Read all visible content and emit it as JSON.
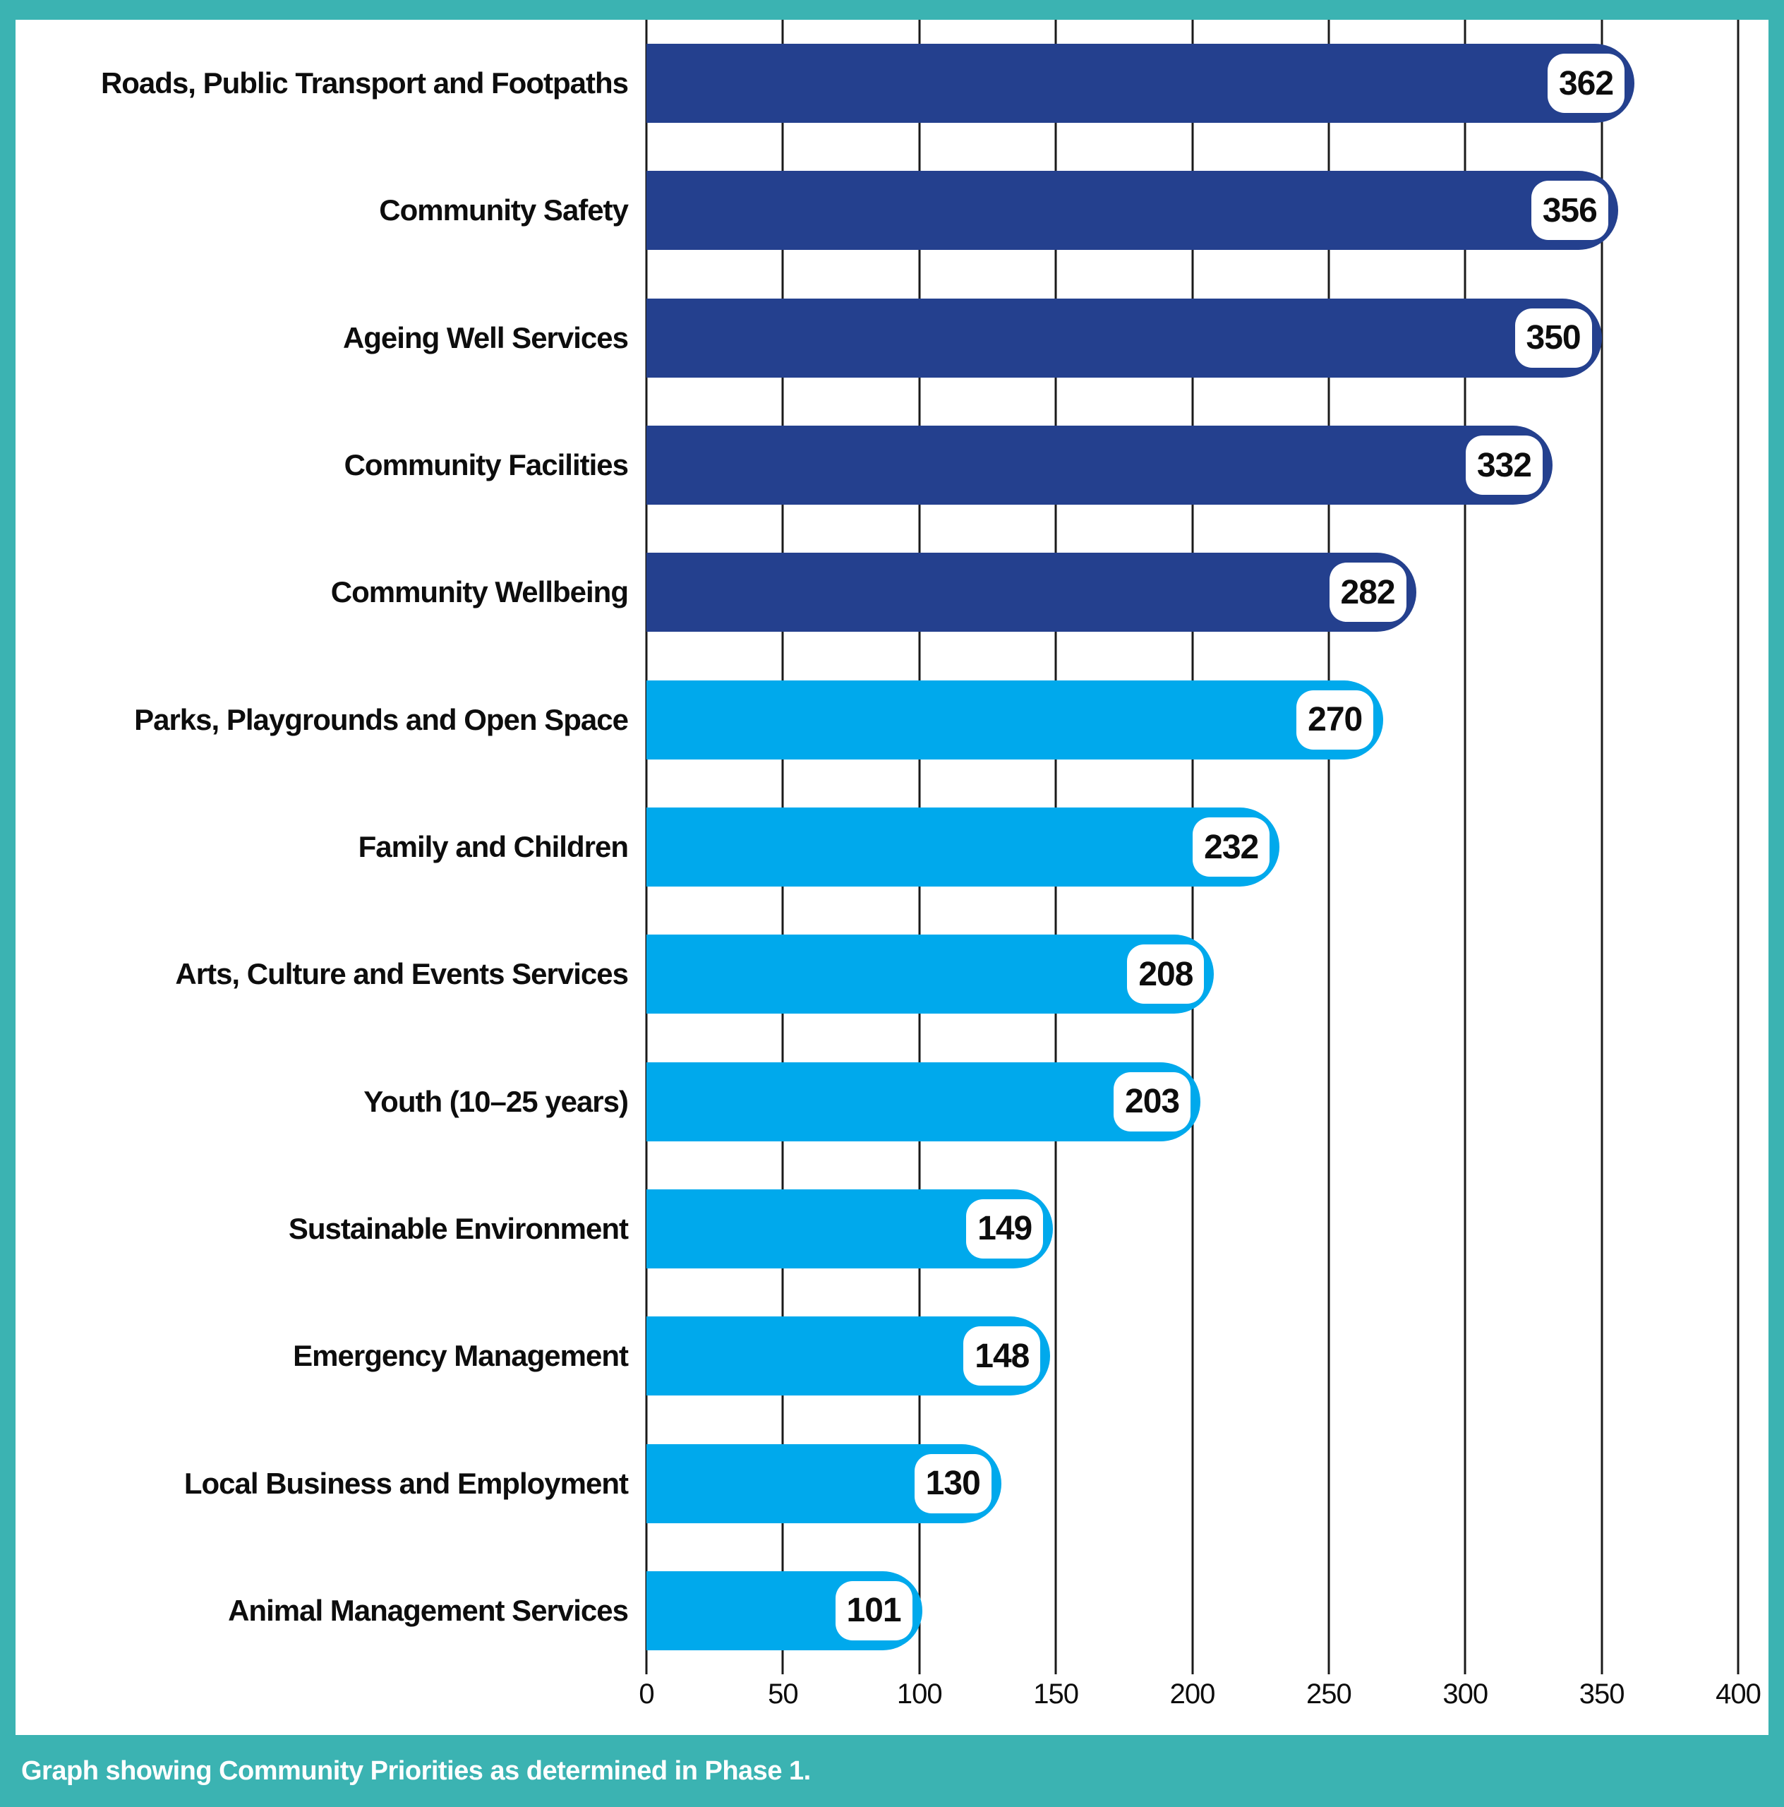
{
  "colors": {
    "teal_frame": "#3BB3B2",
    "navy": "#24408E",
    "sky": "#00A9EC",
    "grid": "#1A1A1A",
    "text": "#0D0D0D",
    "badge_bg": "#FFFFFF"
  },
  "chart_data": {
    "type": "bar",
    "orientation": "horizontal",
    "title": "",
    "xlabel": "",
    "ylabel": "",
    "xlim": [
      0,
      400
    ],
    "grid": "vertical",
    "x_ticks": [
      "0",
      "50",
      "100",
      "150",
      "200",
      "250",
      "300",
      "350",
      "400"
    ],
    "categories": [
      "Roads, Public Transport and Footpaths",
      "Community Safety",
      "Ageing Well Services",
      "Community Facilities",
      "Community Wellbeing",
      "Parks, Playgrounds and Open Space",
      "Family and Children",
      "Arts, Culture and Events Services",
      "Youth (10–25 years)",
      "Sustainable Environment",
      "Emergency Management",
      "Local Business and Employment",
      "Animal Management Services"
    ],
    "values": [
      362,
      356,
      350,
      332,
      282,
      270,
      232,
      208,
      203,
      149,
      148,
      130,
      101
    ],
    "bar_colors": [
      "navy",
      "navy",
      "navy",
      "navy",
      "navy",
      "sky",
      "sky",
      "sky",
      "sky",
      "sky",
      "sky",
      "sky",
      "sky"
    ],
    "caption": "Graph showing Community Priorities as determined in Phase 1."
  }
}
